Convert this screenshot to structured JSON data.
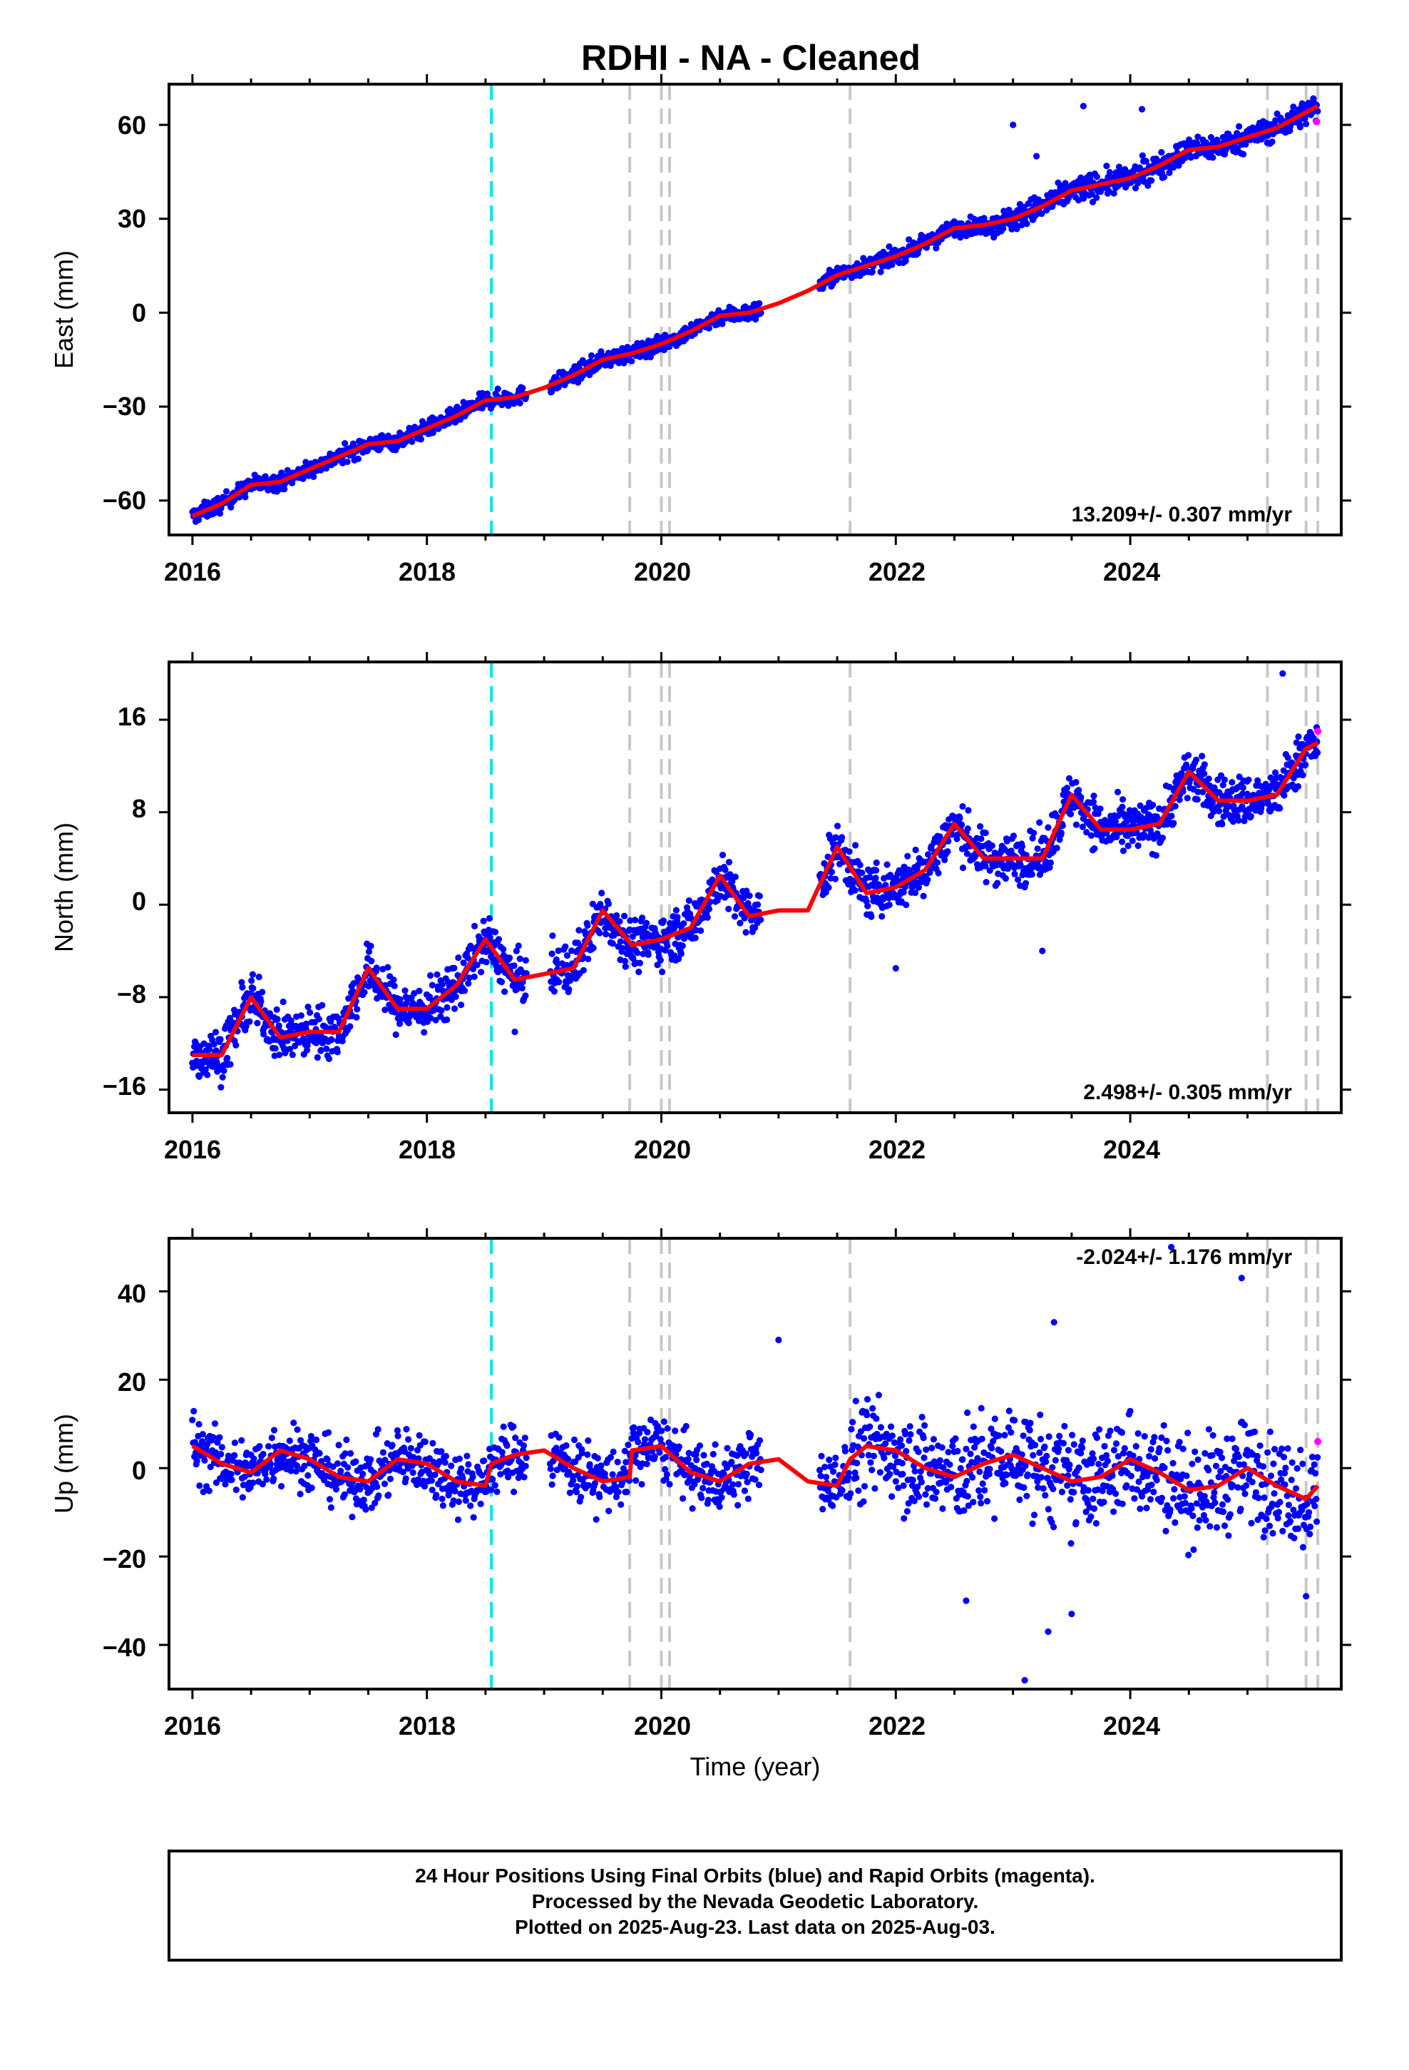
{
  "title": "RDHI  - NA - Cleaned",
  "footer": {
    "line1": "24 Hour Positions Using Final Orbits (blue) and Rapid Orbits (magenta).",
    "line2": "Processed by the Nevada Geodetic Laboratory.",
    "line3": "Plotted on 2025-Aug-23. Last data on 2025-Aug-03."
  },
  "colors": {
    "final_orbits": "#0000ff",
    "rapid_orbits": "#ff00ff",
    "model": "#ff0000",
    "equipment_change": "#00e5ee",
    "event": "#c8c8c8"
  },
  "chart_data": [
    {
      "type": "scatter",
      "name": "east",
      "ylabel": "East (mm)",
      "xlabel": "",
      "xlim": [
        2015.8,
        2025.8
      ],
      "ylim": [
        -71,
        73
      ],
      "x_ticks": [
        2016,
        2018,
        2020,
        2022,
        2024
      ],
      "y_ticks": [
        -60,
        -30,
        0,
        30,
        60
      ],
      "y_tick_labels": [
        "−60",
        "−30",
        "0",
        "30",
        "60"
      ],
      "rate_label": "13.209+/- 0.307 mm/yr",
      "rate_label_pos": "bottom-right",
      "rate_mm_per_yr": 13.209,
      "fit_curve": {
        "x": [
          2016.0,
          2016.25,
          2016.5,
          2016.75,
          2017.0,
          2017.25,
          2017.5,
          2017.75,
          2018.0,
          2018.25,
          2018.5,
          2018.75,
          2019.0,
          2019.25,
          2019.5,
          2019.75,
          2020.0,
          2020.25,
          2020.5,
          2020.75,
          2021.0,
          2021.25,
          2021.5,
          2021.75,
          2022.0,
          2022.25,
          2022.5,
          2022.75,
          2023.0,
          2023.25,
          2023.5,
          2023.75,
          2024.0,
          2024.25,
          2024.5,
          2024.75,
          2025.0,
          2025.25,
          2025.5,
          2025.6
        ],
        "y": [
          -65,
          -61,
          -55,
          -54,
          -50,
          -46,
          -42,
          -41,
          -37,
          -33,
          -28,
          -27,
          -24,
          -20,
          -15,
          -13,
          -10,
          -6,
          -1,
          0,
          3,
          7,
          12,
          15,
          18,
          22,
          27,
          28,
          30,
          34,
          39,
          41,
          43,
          47,
          52,
          53,
          56,
          59,
          64,
          66
        ]
      },
      "data_spans": [
        [
          2016.0,
          2018.85
        ],
        [
          2019.05,
          2019.75
        ],
        [
          2019.75,
          2020.85
        ],
        [
          2021.35,
          2025.6
        ]
      ],
      "scatter_spread_mm": 2.2,
      "cyan_lines_x": [
        2018.55
      ],
      "gray_lines_x": [
        2019.73,
        2020.0,
        2020.07,
        2021.61,
        2025.17,
        2025.5,
        2025.6
      ],
      "rapid_points": [
        {
          "x": 2025.59,
          "y": 61
        }
      ],
      "outliers": [
        {
          "x": 2023.0,
          "y": 60
        },
        {
          "x": 2023.6,
          "y": 66
        },
        {
          "x": 2024.1,
          "y": 65
        },
        {
          "x": 2023.2,
          "y": 50
        }
      ]
    },
    {
      "type": "scatter",
      "name": "north",
      "ylabel": "North (mm)",
      "xlabel": "",
      "xlim": [
        2015.8,
        2025.8
      ],
      "ylim": [
        -18,
        21
      ],
      "x_ticks": [
        2016,
        2018,
        2020,
        2022,
        2024
      ],
      "y_ticks": [
        -16,
        -8,
        0,
        8,
        16
      ],
      "y_tick_labels": [
        "−16",
        "−8",
        "0",
        "8",
        "16"
      ],
      "rate_label": "2.498+/- 0.305 mm/yr",
      "rate_label_pos": "bottom-right",
      "rate_mm_per_yr": 2.498,
      "fit_curve": {
        "x": [
          2016.0,
          2016.25,
          2016.5,
          2016.75,
          2017.0,
          2017.25,
          2017.5,
          2017.75,
          2018.0,
          2018.25,
          2018.5,
          2018.75,
          2019.0,
          2019.25,
          2019.5,
          2019.75,
          2020.0,
          2020.25,
          2020.5,
          2020.75,
          2021.0,
          2021.25,
          2021.5,
          2021.75,
          2022.0,
          2022.25,
          2022.5,
          2022.75,
          2023.0,
          2023.25,
          2023.5,
          2023.75,
          2024.0,
          2024.25,
          2024.5,
          2024.75,
          2025.0,
          2025.25,
          2025.5,
          2025.6
        ],
        "y": [
          -13,
          -13,
          -8,
          -11.5,
          -11,
          -11,
          -5.5,
          -9,
          -9,
          -7,
          -3,
          -6.5,
          -6,
          -5.5,
          -0.5,
          -3.5,
          -3,
          -2,
          2.5,
          -1,
          -0.5,
          -0.5,
          5,
          1,
          1.5,
          3,
          7,
          4,
          4,
          4,
          9.5,
          6.5,
          6.5,
          7,
          11.5,
          9,
          9,
          9.5,
          13.5,
          14
        ]
      },
      "data_spans": [
        [
          2016.0,
          2018.85
        ],
        [
          2019.05,
          2019.75
        ],
        [
          2019.75,
          2020.85
        ],
        [
          2021.35,
          2025.6
        ]
      ],
      "scatter_spread_mm": 1.8,
      "cyan_lines_x": [
        2018.55
      ],
      "gray_lines_x": [
        2019.73,
        2020.0,
        2020.07,
        2021.61,
        2025.17,
        2025.5,
        2025.6
      ],
      "rapid_points": [
        {
          "x": 2025.6,
          "y": 15
        }
      ],
      "outliers": [
        {
          "x": 2025.3,
          "y": 20
        },
        {
          "x": 2023.25,
          "y": -4
        },
        {
          "x": 2022.0,
          "y": -5.5
        },
        {
          "x": 2018.75,
          "y": -11
        }
      ]
    },
    {
      "type": "scatter",
      "name": "up",
      "ylabel": "Up (mm)",
      "xlabel": "Time (year)",
      "xlim": [
        2015.8,
        2025.8
      ],
      "ylim": [
        -50,
        52
      ],
      "x_ticks": [
        2016,
        2018,
        2020,
        2022,
        2024
      ],
      "y_ticks": [
        -40,
        -20,
        0,
        20,
        40
      ],
      "y_tick_labels": [
        "−40",
        "−20",
        "0",
        "20",
        "40"
      ],
      "rate_label": "-2.024+/- 1.176 mm/yr",
      "rate_label_pos": "top-right",
      "rate_mm_per_yr": -2.024,
      "fit_curve": {
        "x": [
          2016.0,
          2016.25,
          2016.5,
          2016.75,
          2017.0,
          2017.25,
          2017.5,
          2017.75,
          2018.0,
          2018.25,
          2018.5,
          2018.55,
          2018.75,
          2019.0,
          2019.25,
          2019.5,
          2019.73,
          2019.75,
          2020.0,
          2020.25,
          2020.5,
          2020.75,
          2021.0,
          2021.25,
          2021.5,
          2021.61,
          2021.75,
          2022.0,
          2022.25,
          2022.5,
          2022.75,
          2023.0,
          2023.25,
          2023.5,
          2023.75,
          2024.0,
          2024.25,
          2024.5,
          2024.75,
          2025.0,
          2025.25,
          2025.5,
          2025.6
        ],
        "y": [
          5,
          1,
          -1,
          4,
          2,
          -2,
          -3,
          2,
          1,
          -3,
          -4,
          1,
          3,
          4,
          0,
          -3,
          -2,
          4,
          5,
          -1,
          -3,
          1,
          2,
          -3,
          -4,
          2,
          5,
          4,
          0,
          -2,
          1,
          3,
          0,
          -3,
          -2,
          2,
          -1,
          -5,
          -4,
          0,
          -4,
          -7,
          -4
        ]
      },
      "data_spans": [
        [
          2016.0,
          2018.55
        ],
        [
          2018.55,
          2018.85
        ],
        [
          2019.05,
          2019.75
        ],
        [
          2019.75,
          2020.85
        ],
        [
          2021.35,
          2025.6
        ]
      ],
      "scatter_spread_mm": 6,
      "cyan_lines_x": [
        2018.55
      ],
      "gray_lines_x": [
        2019.73,
        2020.0,
        2020.07,
        2021.61,
        2025.17,
        2025.5,
        2025.6
      ],
      "rapid_points": [
        {
          "x": 2025.6,
          "y": 6
        }
      ],
      "outliers": [
        {
          "x": 2024.35,
          "y": 50
        },
        {
          "x": 2024.95,
          "y": 43
        },
        {
          "x": 2023.35,
          "y": 33
        },
        {
          "x": 2023.1,
          "y": -48
        },
        {
          "x": 2023.3,
          "y": -37
        },
        {
          "x": 2023.5,
          "y": -33
        },
        {
          "x": 2022.6,
          "y": -30
        },
        {
          "x": 2025.5,
          "y": -29
        },
        {
          "x": 2021.0,
          "y": 29
        }
      ]
    }
  ]
}
